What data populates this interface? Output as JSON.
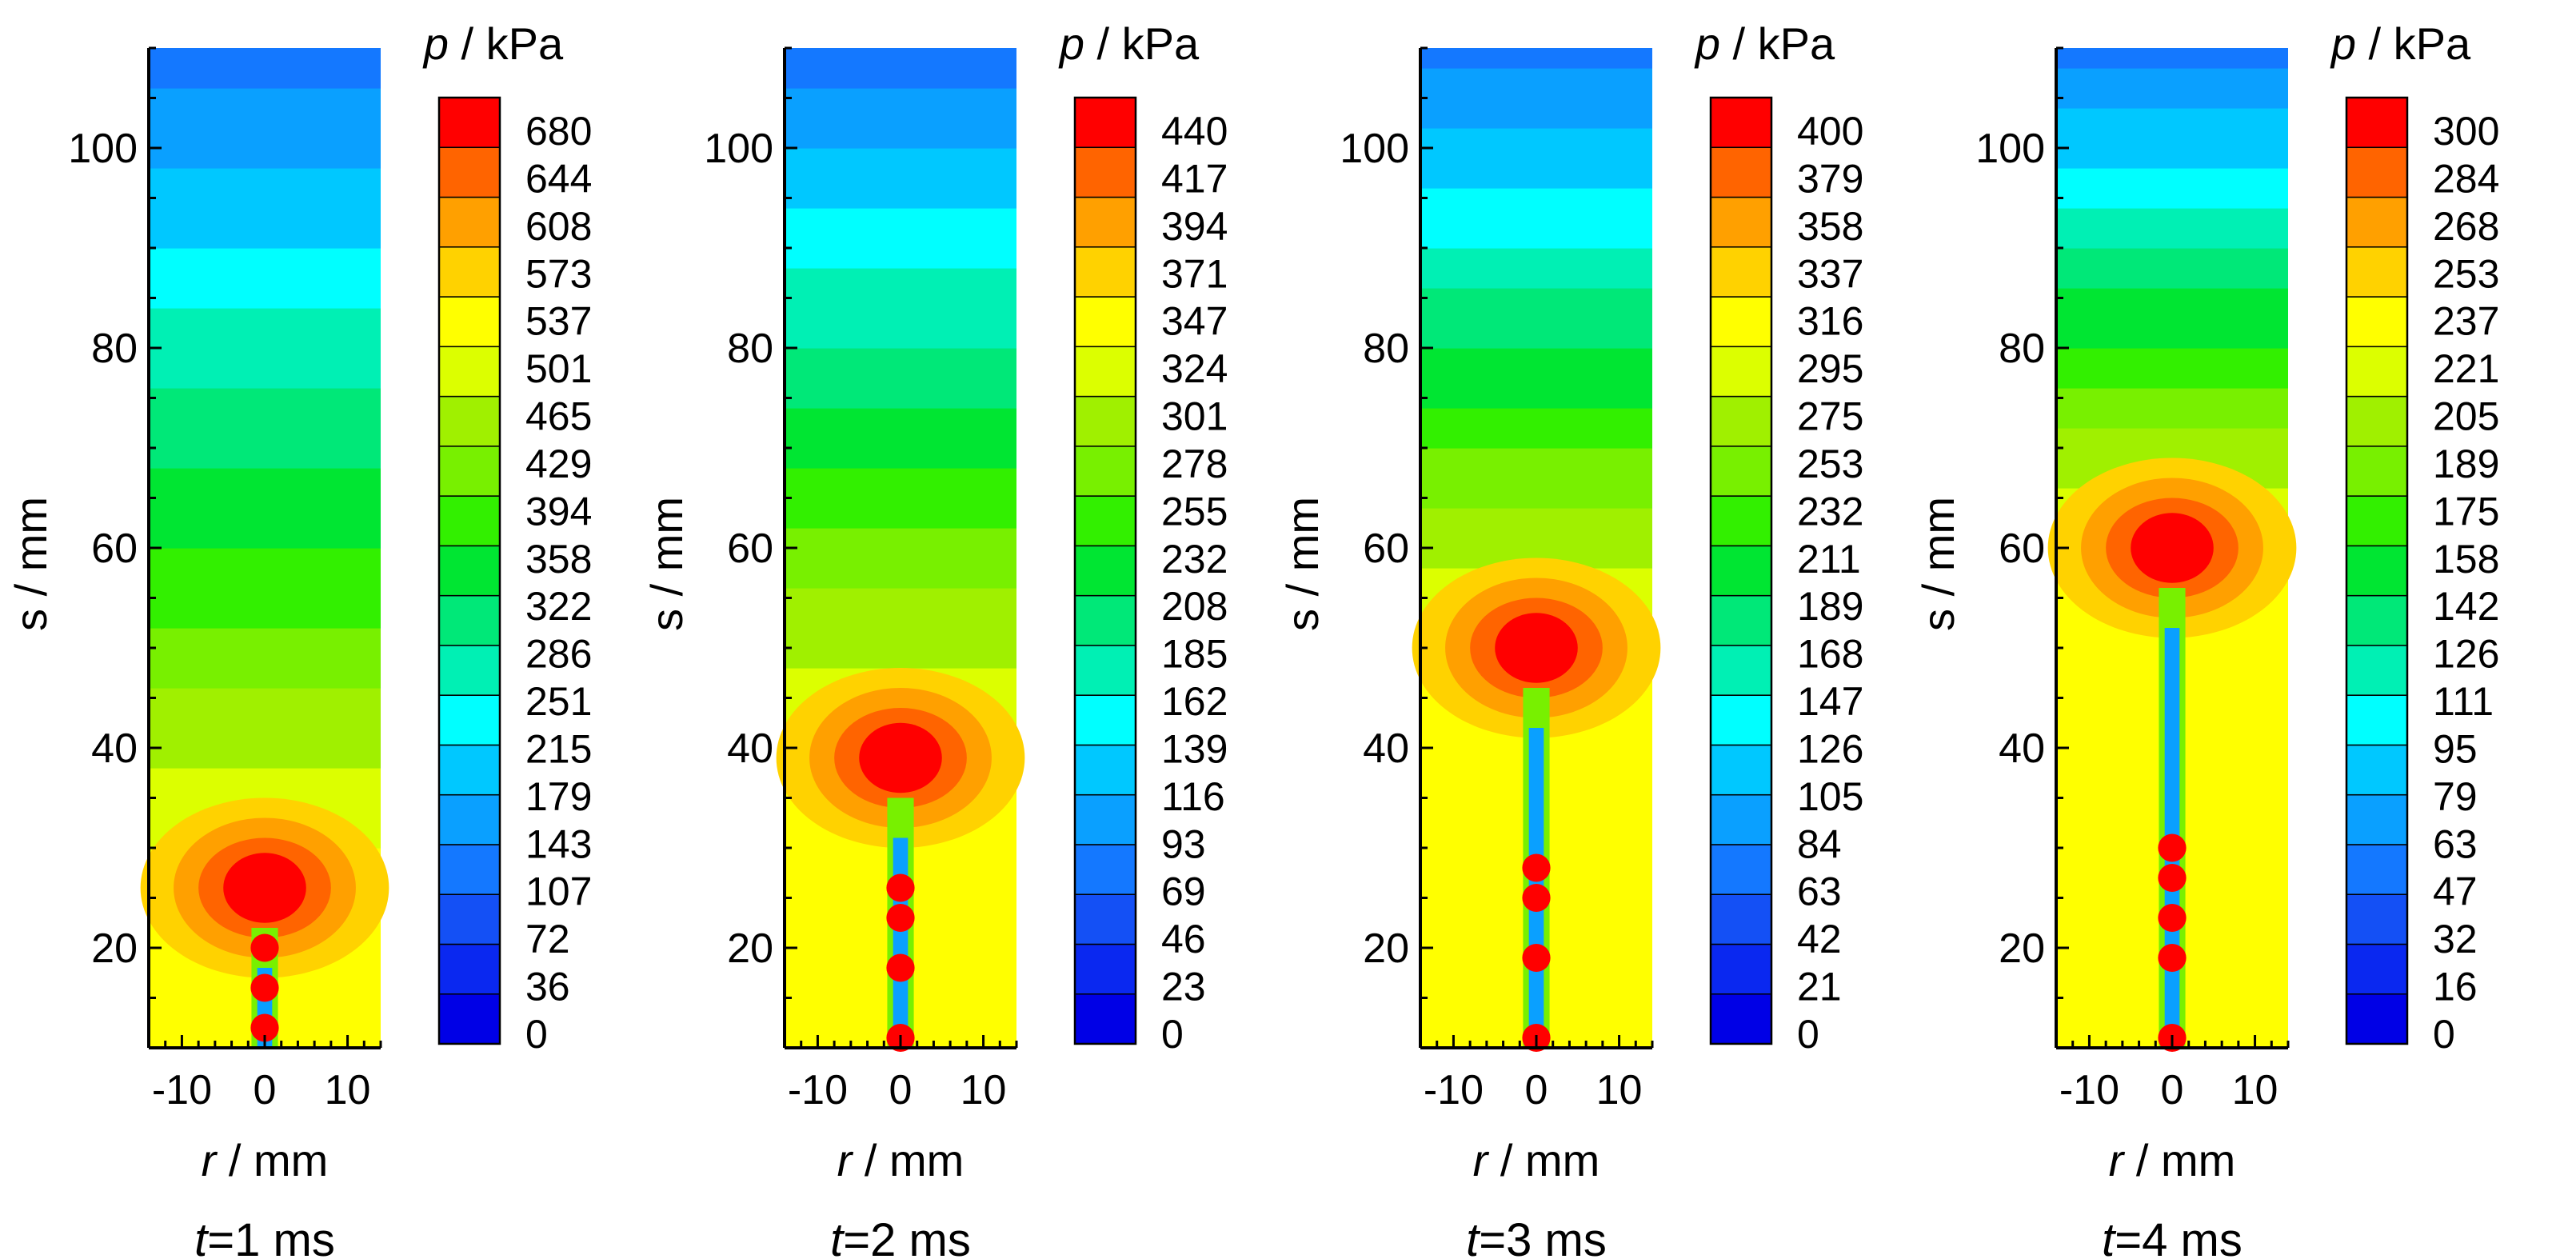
{
  "chart_data": [
    {
      "type": "heatmap",
      "panel_label": {
        "var": "t",
        "rest": "=1 ms"
      },
      "xlabel": {
        "var": "r",
        "rest": " / mm"
      },
      "ylabel": "s / mm",
      "colorbar_label": {
        "var": "p",
        "rest": " / kPa"
      },
      "x_ticks": [
        "-10",
        "0",
        "10"
      ],
      "xlim": [
        -14,
        14
      ],
      "y_ticks": [
        "20",
        "40",
        "60",
        "80",
        "100"
      ],
      "ylim": [
        10,
        110
      ],
      "levels": [
        0,
        36,
        72,
        107,
        143,
        179,
        215,
        251,
        286,
        322,
        358,
        394,
        429,
        465,
        501,
        537,
        573,
        608,
        644,
        680
      ],
      "level_labels": [
        "0",
        "36",
        "72",
        "107",
        "143",
        "179",
        "215",
        "251",
        "286",
        "322",
        "358",
        "394",
        "429",
        "465",
        "501",
        "537",
        "573",
        "608",
        "644",
        "680"
      ],
      "bubble_center_s": 26,
      "jet_droplets_s": [
        20,
        16,
        12
      ]
    },
    {
      "type": "heatmap",
      "panel_label": {
        "var": "t",
        "rest": "=2 ms"
      },
      "xlabel": {
        "var": "r",
        "rest": " / mm"
      },
      "ylabel": "s / mm",
      "colorbar_label": {
        "var": "p",
        "rest": " / kPa"
      },
      "x_ticks": [
        "-10",
        "0",
        "10"
      ],
      "xlim": [
        -14,
        14
      ],
      "y_ticks": [
        "20",
        "40",
        "60",
        "80",
        "100"
      ],
      "ylim": [
        10,
        110
      ],
      "levels": [
        0,
        23,
        46,
        69,
        93,
        116,
        139,
        162,
        185,
        208,
        232,
        255,
        278,
        301,
        324,
        347,
        371,
        394,
        417,
        440
      ],
      "level_labels": [
        "0",
        "23",
        "46",
        "69",
        "93",
        "116",
        "139",
        "162",
        "185",
        "208",
        "232",
        "255",
        "278",
        "301",
        "324",
        "347",
        "371",
        "394",
        "417",
        "440"
      ],
      "bubble_center_s": 39,
      "jet_droplets_s": [
        26,
        23,
        18,
        11
      ]
    },
    {
      "type": "heatmap",
      "panel_label": {
        "var": "t",
        "rest": "=3 ms"
      },
      "xlabel": {
        "var": "r",
        "rest": " / mm"
      },
      "ylabel": "s / mm",
      "colorbar_label": {
        "var": "p",
        "rest": " / kPa"
      },
      "x_ticks": [
        "-10",
        "0",
        "10"
      ],
      "xlim": [
        -14,
        14
      ],
      "y_ticks": [
        "20",
        "40",
        "60",
        "80",
        "100"
      ],
      "ylim": [
        10,
        110
      ],
      "levels": [
        0,
        21,
        42,
        63,
        84,
        105,
        126,
        147,
        168,
        189,
        211,
        232,
        253,
        275,
        295,
        316,
        337,
        358,
        379,
        400
      ],
      "level_labels": [
        "0",
        "21",
        "42",
        "63",
        "84",
        "105",
        "126",
        "147",
        "168",
        "189",
        "211",
        "232",
        "253",
        "275",
        "295",
        "316",
        "337",
        "358",
        "379",
        "400"
      ],
      "bubble_center_s": 50,
      "jet_droplets_s": [
        28,
        25,
        19,
        11
      ]
    },
    {
      "type": "heatmap",
      "panel_label": {
        "var": "t",
        "rest": "=4 ms"
      },
      "xlabel": {
        "var": "r",
        "rest": " / mm"
      },
      "ylabel": "s / mm",
      "colorbar_label": {
        "var": "p",
        "rest": " / kPa"
      },
      "x_ticks": [
        "-10",
        "0",
        "10"
      ],
      "xlim": [
        -14,
        14
      ],
      "y_ticks": [
        "20",
        "40",
        "60",
        "80",
        "100"
      ],
      "ylim": [
        10,
        110
      ],
      "levels": [
        0,
        16,
        32,
        47,
        63,
        79,
        95,
        111,
        126,
        142,
        158,
        175,
        189,
        205,
        221,
        237,
        253,
        268,
        284,
        300
      ],
      "level_labels": [
        "0",
        "16",
        "32",
        "47",
        "63",
        "79",
        "95",
        "111",
        "126",
        "142",
        "158",
        "175",
        "189",
        "205",
        "221",
        "237",
        "253",
        "268",
        "284",
        "300"
      ],
      "bubble_center_s": 60,
      "jet_droplets_s": [
        30,
        27,
        23,
        19,
        11
      ]
    }
  ]
}
